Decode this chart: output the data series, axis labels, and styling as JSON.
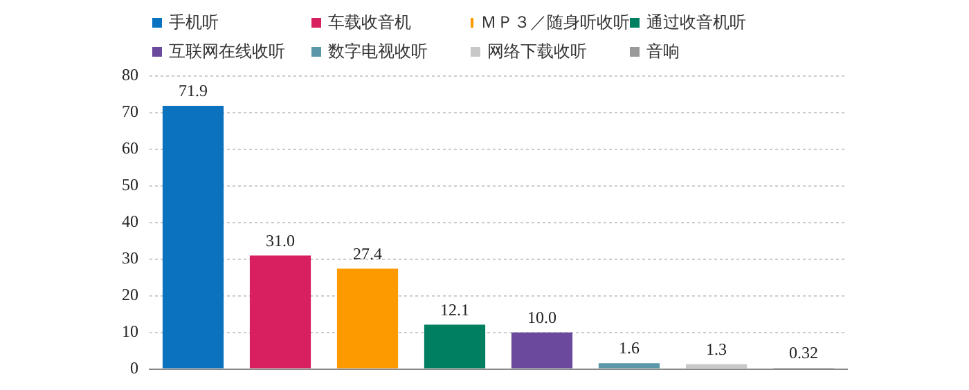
{
  "chart_data": {
    "type": "bar",
    "categories": [
      null,
      null,
      null,
      null,
      null,
      null,
      null,
      null
    ],
    "series": [
      {
        "name": "手机听",
        "color": "#0a72bf",
        "values": [
          71.9,
          null,
          null,
          null,
          null,
          null,
          null,
          null
        ],
        "value_labels": [
          "71.9",
          null,
          null,
          null,
          null,
          null,
          null,
          null
        ]
      },
      {
        "name": "车载收音机",
        "color": "#d81f5f",
        "values": [
          null,
          31.0,
          null,
          null,
          null,
          null,
          null,
          null
        ],
        "value_labels": [
          null,
          "31.0",
          null,
          null,
          null,
          null,
          null,
          null
        ]
      },
      {
        "name": "ＭＰ３／随身听收听",
        "color": "#fd9a00",
        "values": [
          null,
          null,
          27.4,
          null,
          null,
          null,
          null,
          null
        ],
        "value_labels": [
          null,
          null,
          "27.4",
          null,
          null,
          null,
          null,
          null
        ]
      },
      {
        "name": "通过收音机听",
        "color": "#008060",
        "values": [
          null,
          null,
          null,
          12.1,
          null,
          null,
          null,
          null
        ],
        "value_labels": [
          null,
          null,
          null,
          "12.1",
          null,
          null,
          null,
          null
        ]
      },
      {
        "name": "互联网在线收听",
        "color": "#6b4a9e",
        "values": [
          null,
          null,
          null,
          null,
          10.0,
          null,
          null,
          null
        ],
        "value_labels": [
          null,
          null,
          null,
          null,
          "10.0",
          null,
          null,
          null
        ]
      },
      {
        "name": "数字电视收听",
        "color": "#5a97a8",
        "values": [
          null,
          null,
          null,
          null,
          null,
          1.6,
          null,
          null
        ],
        "value_labels": [
          null,
          null,
          null,
          null,
          null,
          "1.6",
          null,
          null
        ]
      },
      {
        "name": "网络下载收听",
        "color": "#c8c8c8",
        "values": [
          null,
          null,
          null,
          null,
          null,
          null,
          1.3,
          null
        ],
        "value_labels": [
          null,
          null,
          null,
          null,
          null,
          null,
          "1.3",
          null
        ]
      },
      {
        "name": "音响",
        "color": "#999999",
        "values": [
          null,
          null,
          null,
          null,
          null,
          null,
          null,
          0.32
        ],
        "value_labels": [
          null,
          null,
          null,
          null,
          null,
          null,
          null,
          "0.32"
        ]
      }
    ],
    "ylim": [
      0,
      80
    ],
    "yticks": [
      0,
      10,
      20,
      30,
      40,
      50,
      60,
      70,
      80
    ],
    "grid": "y",
    "legend": "top",
    "tick_labels": "y"
  }
}
